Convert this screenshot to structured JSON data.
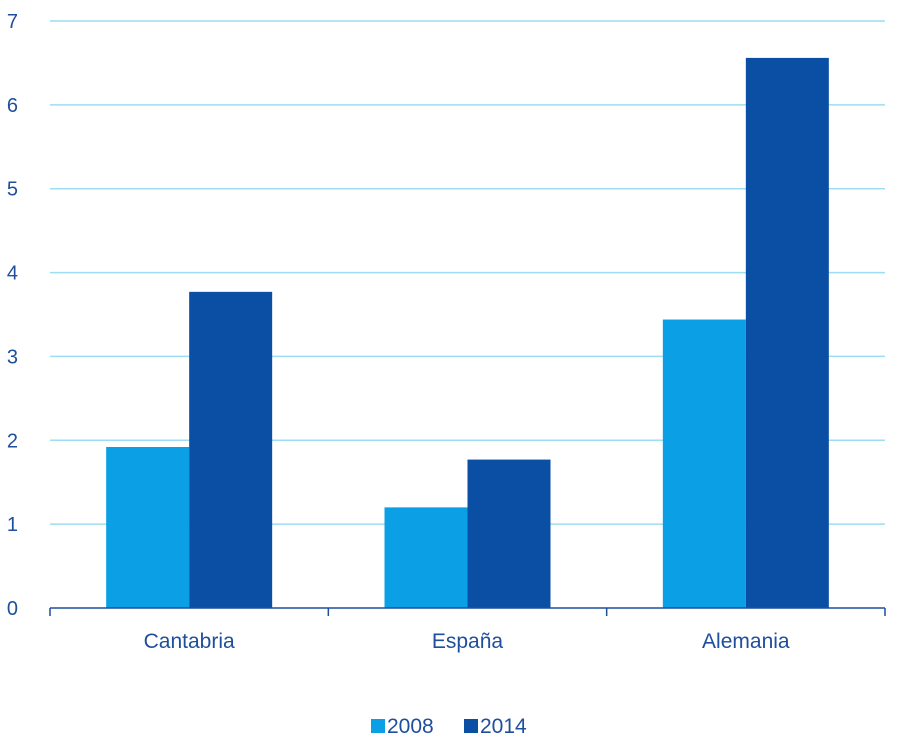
{
  "chart_data": {
    "type": "bar",
    "categories": [
      "Cantabria",
      "España",
      "Alemania"
    ],
    "series": [
      {
        "name": "2008",
        "values": [
          1.92,
          1.2,
          3.44
        ],
        "color": "#0ba0e6"
      },
      {
        "name": "2014",
        "values": [
          3.77,
          1.77,
          6.56
        ],
        "color": "#0a4fa3"
      }
    ],
    "ylim": [
      0,
      7
    ],
    "yticks": [
      "0",
      "1",
      "2",
      "3",
      "4",
      "5",
      "6",
      "7"
    ],
    "grid": true,
    "gridline_color": "#9ddcf2",
    "axis_color": "#1f4e9c",
    "text_color": "#1f4e9c",
    "legend_position": "bottom"
  }
}
